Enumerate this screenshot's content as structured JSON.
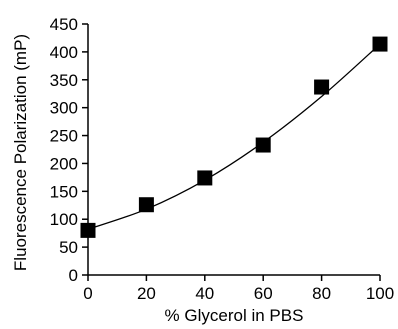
{
  "chart_data": {
    "type": "scatter",
    "title": "",
    "xlabel": "% Glycerol in PBS",
    "ylabel": "Fluorescence Polarization (mP)",
    "xlim": [
      0,
      100
    ],
    "ylim": [
      0,
      450
    ],
    "xticks": [
      "0",
      "20",
      "40",
      "60",
      "80",
      "100"
    ],
    "yticks": [
      "0",
      "50",
      "100",
      "150",
      "200",
      "250",
      "300",
      "350",
      "400",
      "450"
    ],
    "grid": false,
    "legend": "none",
    "series": [
      {
        "x": [
          0,
          20,
          40,
          60,
          80,
          100
        ],
        "y": [
          80,
          126,
          174,
          233,
          337,
          414
        ]
      }
    ],
    "fit_curve": {
      "x": [
        0,
        20,
        40,
        60,
        80,
        100
      ],
      "y": [
        82,
        118,
        170,
        238,
        320,
        414
      ]
    },
    "marker": "square",
    "color": "#000000"
  }
}
